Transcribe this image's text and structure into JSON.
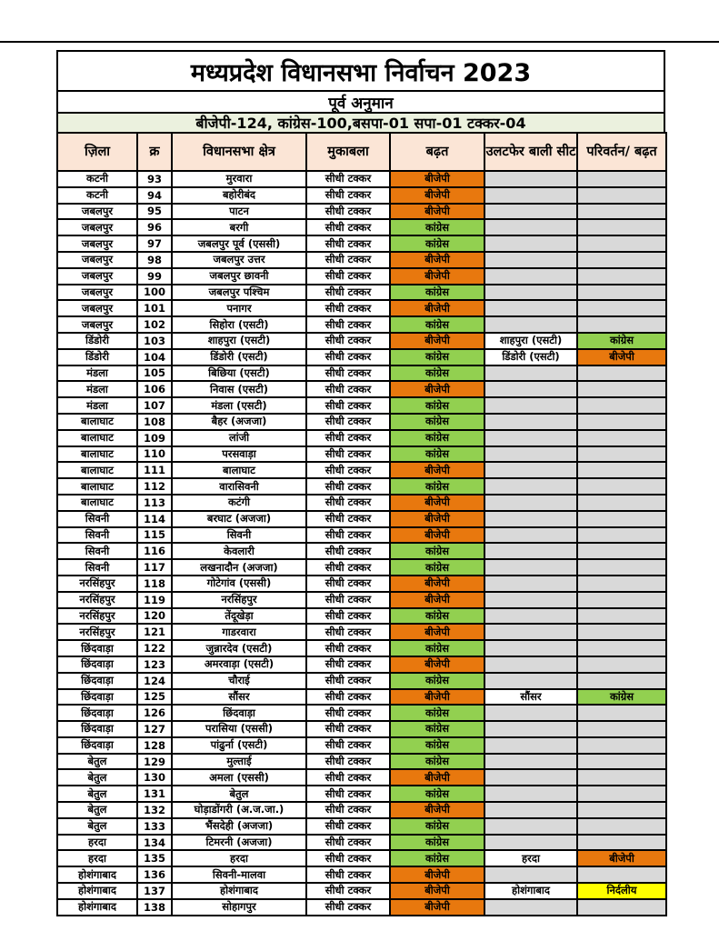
{
  "page": {
    "title": "मध्यप्रदेश विधानसभा निर्वाचन 2023",
    "subtitle": "पूर्व अनुमान",
    "summary": "बीजेपी-124, कांग्रेस-100,बसपा-01 सपा-01 टक्कर-04"
  },
  "colors": {
    "bjp": "#E8780E",
    "congress": "#92D050",
    "independent": "#FFFF00",
    "empty": "#D9D9D9",
    "filled_bg": "#FFFFFF",
    "header_bg": "#FBE5D6",
    "summary_bg": "#EBF1DE"
  },
  "table": {
    "columns": [
      "ज़िला",
      "क्र",
      "विधानसभा  क्षेत्र",
      "मुकाबला",
      "बढ़त",
      "उलटफेर बाली सीट",
      "परिवर्तन/ बढ़त"
    ],
    "rows": [
      {
        "district": "कटनी",
        "no": "93",
        "seat": "मुरवारा",
        "contest": "सीधी टक्कर",
        "lead": "बीजेपी",
        "lead_party": "bjp",
        "upset_seat": "",
        "change": "",
        "change_party": ""
      },
      {
        "district": "कटनी",
        "no": "94",
        "seat": "बहोरीबंद",
        "contest": "सीधी टक्कर",
        "lead": "बीजेपी",
        "lead_party": "bjp",
        "upset_seat": "",
        "change": "",
        "change_party": ""
      },
      {
        "district": "जबलपुर",
        "no": "95",
        "seat": "पाटन",
        "contest": "सीधी टक्कर",
        "lead": "बीजेपी",
        "lead_party": "bjp",
        "upset_seat": "",
        "change": "",
        "change_party": ""
      },
      {
        "district": "जबलपुर",
        "no": "96",
        "seat": "बरगी",
        "contest": "सीधी टक्कर",
        "lead": "कांग्रेस",
        "lead_party": "congress",
        "upset_seat": "",
        "change": "",
        "change_party": ""
      },
      {
        "district": "जबलपुर",
        "no": "97",
        "seat": "जबलपुर पूर्व (एससी)",
        "contest": "सीधी टक्कर",
        "lead": "कांग्रेस",
        "lead_party": "congress",
        "upset_seat": "",
        "change": "",
        "change_party": ""
      },
      {
        "district": "जबलपुर",
        "no": "98",
        "seat": "जबलपुर उत्तर",
        "contest": "सीधी टक्कर",
        "lead": "बीजेपी",
        "lead_party": "bjp",
        "upset_seat": "",
        "change": "",
        "change_party": ""
      },
      {
        "district": "जबलपुर",
        "no": "99",
        "seat": "जबलपुर छावनी",
        "contest": "सीधी टक्कर",
        "lead": "बीजेपी",
        "lead_party": "bjp",
        "upset_seat": "",
        "change": "",
        "change_party": ""
      },
      {
        "district": "जबलपुर",
        "no": "100",
        "seat": "जबलपुर पश्चिम",
        "contest": "सीधी टक्कर",
        "lead": "कांग्रेस",
        "lead_party": "congress",
        "upset_seat": "",
        "change": "",
        "change_party": ""
      },
      {
        "district": "जबलपुर",
        "no": "101",
        "seat": "पनागर",
        "contest": "सीधी टक्कर",
        "lead": "बीजेपी",
        "lead_party": "bjp",
        "upset_seat": "",
        "change": "",
        "change_party": ""
      },
      {
        "district": "जबलपुर",
        "no": "102",
        "seat": "सिहोरा (एसटी)",
        "contest": "सीधी टक्कर",
        "lead": "कांग्रेस",
        "lead_party": "congress",
        "upset_seat": "",
        "change": "",
        "change_party": ""
      },
      {
        "district": "डिंडोरी",
        "no": "103",
        "seat": "शाहपुरा (एसटी)",
        "contest": "सीधी टक्कर",
        "lead": "बीजेपी",
        "lead_party": "bjp",
        "upset_seat": "शाहपुरा (एसटी)",
        "change": "कांग्रेस",
        "change_party": "congress"
      },
      {
        "district": "डिंडोरी",
        "no": "104",
        "seat": "डिंडोरी (एसटी)",
        "contest": "सीधी टक्कर",
        "lead": "कांग्रेस",
        "lead_party": "congress",
        "upset_seat": "डिंडोरी (एसटी)",
        "change": "बीजेपी",
        "change_party": "bjp"
      },
      {
        "district": "मंडला",
        "no": "105",
        "seat": "बिछिया (एसटी)",
        "contest": "सीधी टक्कर",
        "lead": "कांग्रेस",
        "lead_party": "congress",
        "upset_seat": "",
        "change": "",
        "change_party": ""
      },
      {
        "district": "मंडला",
        "no": "106",
        "seat": "निवास (एसटी)",
        "contest": "सीधी टक्कर",
        "lead": "बीजेपी",
        "lead_party": "bjp",
        "upset_seat": "",
        "change": "",
        "change_party": ""
      },
      {
        "district": "मंडला",
        "no": "107",
        "seat": "मंडला (एसटी)",
        "contest": "सीधी टक्कर",
        "lead": "कांग्रेस",
        "lead_party": "congress",
        "upset_seat": "",
        "change": "",
        "change_party": ""
      },
      {
        "district": "बालाघाट",
        "no": "108",
        "seat": "बैहर (अजजा)",
        "contest": "सीधी टक्कर",
        "lead": "कांग्रेस",
        "lead_party": "congress",
        "upset_seat": "",
        "change": "",
        "change_party": ""
      },
      {
        "district": "बालाघाट",
        "no": "109",
        "seat": "लांजी",
        "contest": "सीधी टक्कर",
        "lead": "कांग्रेस",
        "lead_party": "congress",
        "upset_seat": "",
        "change": "",
        "change_party": ""
      },
      {
        "district": "बालाघाट",
        "no": "110",
        "seat": "परसवाड़ा",
        "contest": "सीधी टक्कर",
        "lead": "कांग्रेस",
        "lead_party": "congress",
        "upset_seat": "",
        "change": "",
        "change_party": ""
      },
      {
        "district": "बालाघाट",
        "no": "111",
        "seat": "बालाघाट",
        "contest": "सीधी टक्कर",
        "lead": "बीजेपी",
        "lead_party": "bjp",
        "upset_seat": "",
        "change": "",
        "change_party": ""
      },
      {
        "district": "बालाघाट",
        "no": "112",
        "seat": "वारासिवनी",
        "contest": "सीधी टक्कर",
        "lead": "कांग्रेस",
        "lead_party": "congress",
        "upset_seat": "",
        "change": "",
        "change_party": ""
      },
      {
        "district": "बालाघाट",
        "no": "113",
        "seat": "कटंगी",
        "contest": "सीधी टक्कर",
        "lead": "बीजेपी",
        "lead_party": "bjp",
        "upset_seat": "",
        "change": "",
        "change_party": ""
      },
      {
        "district": "सिवनी",
        "no": "114",
        "seat": "बरघाट (अजजा)",
        "contest": "सीधी टक्कर",
        "lead": "बीजेपी",
        "lead_party": "bjp",
        "upset_seat": "",
        "change": "",
        "change_party": ""
      },
      {
        "district": "सिवनी",
        "no": "115",
        "seat": "सिवनी",
        "contest": "सीधी टक्कर",
        "lead": "बीजेपी",
        "lead_party": "bjp",
        "upset_seat": "",
        "change": "",
        "change_party": ""
      },
      {
        "district": "सिवनी",
        "no": "116",
        "seat": "केवलारी",
        "contest": "सीधी टक्कर",
        "lead": "कांग्रेस",
        "lead_party": "congress",
        "upset_seat": "",
        "change": "",
        "change_party": ""
      },
      {
        "district": "सिवनी",
        "no": "117",
        "seat": "लखनादौन (अजजा)",
        "contest": "सीधी टक्कर",
        "lead": "कांग्रेस",
        "lead_party": "congress",
        "upset_seat": "",
        "change": "",
        "change_party": ""
      },
      {
        "district": "नरसिंहपुर",
        "no": "118",
        "seat": "गोटेगांव (एससी)",
        "contest": "सीधी टक्कर",
        "lead": "बीजेपी",
        "lead_party": "bjp",
        "upset_seat": "",
        "change": "",
        "change_party": ""
      },
      {
        "district": "नरसिंहपुर",
        "no": "119",
        "seat": "नरसिंहपुर",
        "contest": "सीधी टक्कर",
        "lead": "बीजेपी",
        "lead_party": "bjp",
        "upset_seat": "",
        "change": "",
        "change_party": ""
      },
      {
        "district": "नरसिंहपुर",
        "no": "120",
        "seat": "तेंदूखेड़ा",
        "contest": "सीधी टक्कर",
        "lead": "कांग्रेस",
        "lead_party": "congress",
        "upset_seat": "",
        "change": "",
        "change_party": ""
      },
      {
        "district": "नरसिंहपुर",
        "no": "121",
        "seat": "गाडरवारा",
        "contest": "सीधी टक्कर",
        "lead": "बीजेपी",
        "lead_party": "bjp",
        "upset_seat": "",
        "change": "",
        "change_party": ""
      },
      {
        "district": "छिंदवाड़ा",
        "no": "122",
        "seat": "जुन्नारदेव (एसटी)",
        "contest": "सीधी टक्कर",
        "lead": "कांग्रेस",
        "lead_party": "congress",
        "upset_seat": "",
        "change": "",
        "change_party": ""
      },
      {
        "district": "छिंदवाड़ा",
        "no": "123",
        "seat": "अमरवाड़ा (एसटी)",
        "contest": "सीधी टक्कर",
        "lead": "बीजेपी",
        "lead_party": "bjp",
        "upset_seat": "",
        "change": "",
        "change_party": ""
      },
      {
        "district": "छिंदवाड़ा",
        "no": "124",
        "seat": "चौराई",
        "contest": "सीधी टक्कर",
        "lead": "कांग्रेस",
        "lead_party": "congress",
        "upset_seat": "",
        "change": "",
        "change_party": ""
      },
      {
        "district": "छिंदवाड़ा",
        "no": "125",
        "seat": "सौंसर",
        "contest": "सीधी टक्कर",
        "lead": "बीजेपी",
        "lead_party": "bjp",
        "upset_seat": "सौंसर",
        "change": "कांग्रेस",
        "change_party": "congress"
      },
      {
        "district": "छिंदवाड़ा",
        "no": "126",
        "seat": "छिंदवाड़ा",
        "contest": "सीधी टक्कर",
        "lead": "कांग्रेस",
        "lead_party": "congress",
        "upset_seat": "",
        "change": "",
        "change_party": ""
      },
      {
        "district": "छिंदवाड़ा",
        "no": "127",
        "seat": "परासिया (एससी)",
        "contest": "सीधी टक्कर",
        "lead": "कांग्रेस",
        "lead_party": "congress",
        "upset_seat": "",
        "change": "",
        "change_party": ""
      },
      {
        "district": "छिंदवाड़ा",
        "no": "128",
        "seat": "पांढुर्ना (एसटी)",
        "contest": "सीधी टक्कर",
        "lead": "कांग्रेस",
        "lead_party": "congress",
        "upset_seat": "",
        "change": "",
        "change_party": ""
      },
      {
        "district": "बेतुल",
        "no": "129",
        "seat": "मुल्ताई",
        "contest": "सीधी टक्कर",
        "lead": "कांग्रेस",
        "lead_party": "congress",
        "upset_seat": "",
        "change": "",
        "change_party": ""
      },
      {
        "district": "बेतुल",
        "no": "130",
        "seat": "अमला (एससी)",
        "contest": "सीधी टक्कर",
        "lead": "बीजेपी",
        "lead_party": "bjp",
        "upset_seat": "",
        "change": "",
        "change_party": ""
      },
      {
        "district": "बेतुल",
        "no": "131",
        "seat": "बेतुल",
        "contest": "सीधी टक्कर",
        "lead": "कांग्रेस",
        "lead_party": "congress",
        "upset_seat": "",
        "change": "",
        "change_party": ""
      },
      {
        "district": "बेतुल",
        "no": "132",
        "seat": "घोड़ाडोंगरी (अ.ज.जा.)",
        "contest": "सीधी टक्कर",
        "lead": "बीजेपी",
        "lead_party": "bjp",
        "upset_seat": "",
        "change": "",
        "change_party": ""
      },
      {
        "district": "बेतुल",
        "no": "133",
        "seat": "भैंसदेही (अजजा)",
        "contest": "सीधी टक्कर",
        "lead": "कांग्रेस",
        "lead_party": "congress",
        "upset_seat": "",
        "change": "",
        "change_party": ""
      },
      {
        "district": "हरदा",
        "no": "134",
        "seat": "टिमरनी (अजजा)",
        "contest": "सीधी टक्कर",
        "lead": "कांग्रेस",
        "lead_party": "congress",
        "upset_seat": "",
        "change": "",
        "change_party": ""
      },
      {
        "district": "हरदा",
        "no": "135",
        "seat": "हरदा",
        "contest": "सीधी टक्कर",
        "lead": "कांग्रेस",
        "lead_party": "congress",
        "upset_seat": "हरदा",
        "change": "बीजेपी",
        "change_party": "bjp"
      },
      {
        "district": "होशंगाबाद",
        "no": "136",
        "seat": "सिवनी-मालवा",
        "contest": "सीधी टक्कर",
        "lead": "बीजेपी",
        "lead_party": "bjp",
        "upset_seat": "",
        "change": "",
        "change_party": ""
      },
      {
        "district": "होशंगाबाद",
        "no": "137",
        "seat": "होशंगाबाद",
        "contest": "सीधी टक्कर",
        "lead": "बीजेपी",
        "lead_party": "bjp",
        "upset_seat": "होशंगाबाद",
        "change": "निर्दलीय",
        "change_party": "independent"
      },
      {
        "district": "होशंगाबाद",
        "no": "138",
        "seat": "सोहागपुर",
        "contest": "सीधी टक्कर",
        "lead": "बीजेपी",
        "lead_party": "bjp",
        "upset_seat": "",
        "change": "",
        "change_party": ""
      }
    ]
  }
}
